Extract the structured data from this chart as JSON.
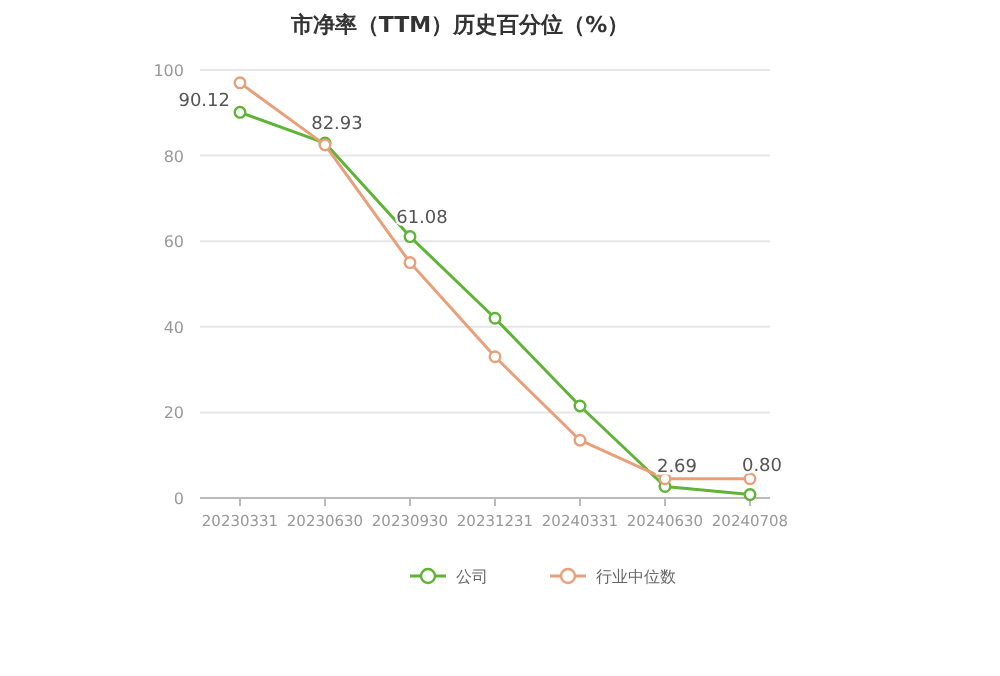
{
  "chart_data": {
    "type": "line",
    "title": "市净率（TTM）历史百分位（%）",
    "categories": [
      "20230331",
      "20230630",
      "20230930",
      "20231231",
      "20240331",
      "20240630",
      "20240708"
    ],
    "series": [
      {
        "name": "公司",
        "color": "#5fb336",
        "values": [
          90.12,
          82.93,
          61.08,
          42,
          21.5,
          2.69,
          0.8
        ],
        "value_labels": [
          "90.12",
          "82.93",
          "61.08",
          null,
          null,
          "2.69",
          "0.80"
        ]
      },
      {
        "name": "行业中位数",
        "color": "#e8a07a",
        "values": [
          97,
          82.5,
          55,
          33,
          13.5,
          4.5,
          4.5
        ]
      }
    ],
    "ylim": [
      0,
      100
    ],
    "yticks": [
      0,
      20,
      40,
      60,
      80,
      100
    ],
    "grid": "y",
    "legend": "bottom",
    "marker": "circle"
  }
}
